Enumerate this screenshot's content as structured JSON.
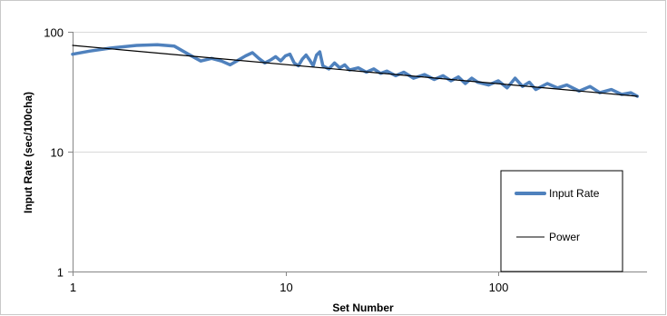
{
  "chart_data": {
    "type": "line",
    "title": "",
    "xlabel": "Set Number",
    "ylabel": "Input Rate (sec/100cha)",
    "x_scale": "log",
    "y_scale": "log",
    "xlim": [
      1,
      500
    ],
    "ylim": [
      1,
      100
    ],
    "x_ticks": [
      1,
      10,
      100
    ],
    "x_tick_labels": [
      "1",
      "10",
      "100"
    ],
    "y_ticks": [
      1,
      10,
      100
    ],
    "y_tick_labels": [
      "1",
      "10",
      "100"
    ],
    "grid": "horizontal major gridlines",
    "legend_position": "right",
    "series": [
      {
        "name": "Input Rate",
        "color": "#4f81bd",
        "x": [
          1,
          1.2,
          1.5,
          2,
          2.5,
          3,
          3.5,
          4,
          4.5,
          5,
          5.5,
          6,
          6.5,
          7,
          7.5,
          8,
          8.5,
          9,
          9.5,
          10,
          10.5,
          11,
          11.5,
          12,
          12.5,
          13,
          13.5,
          14,
          14.5,
          15,
          16,
          17,
          18,
          19,
          20,
          22,
          24,
          26,
          28,
          30,
          33,
          36,
          40,
          45,
          50,
          55,
          60,
          65,
          70,
          75,
          80,
          90,
          100,
          110,
          120,
          130,
          140,
          150,
          170,
          190,
          210,
          240,
          270,
          300,
          340,
          380,
          420,
          450
        ],
        "values": [
          65,
          69,
          73,
          77,
          78,
          76,
          65,
          57,
          60,
          57,
          53,
          58,
          63,
          67,
          60,
          55,
          58,
          62,
          57,
          63,
          65,
          55,
          52,
          59,
          64,
          58,
          52,
          64,
          68,
          52,
          49,
          55,
          50,
          53,
          48,
          50,
          46,
          49,
          45,
          47,
          43,
          46,
          41,
          44,
          40,
          43,
          39,
          42,
          37,
          41,
          38,
          36,
          39,
          34,
          41,
          35,
          38,
          33,
          37,
          34,
          36,
          32,
          35,
          31,
          33,
          30,
          31,
          29
        ]
      },
      {
        "name": "Power",
        "color": "#000000",
        "x": [
          1,
          450
        ],
        "values": [
          77,
          29
        ]
      }
    ]
  }
}
